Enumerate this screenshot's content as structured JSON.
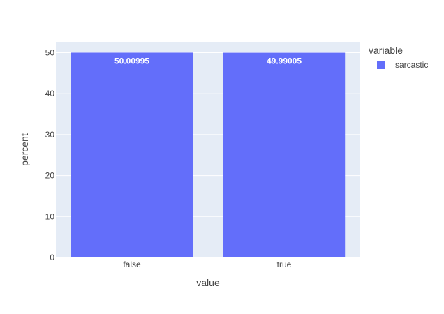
{
  "chart_data": {
    "type": "bar",
    "categories": [
      "false",
      "true"
    ],
    "series": [
      {
        "name": "sarcastic",
        "values": [
          50.00995,
          49.99005
        ],
        "color": "#636efa"
      }
    ],
    "data_labels": [
      "50.00995",
      "49.99005"
    ],
    "xlabel": "value",
    "ylabel": "percent",
    "ylim": [
      0,
      52.64
    ],
    "yticks": [
      0,
      10,
      20,
      30,
      40,
      50
    ],
    "grid": true,
    "legend": {
      "title": "variable",
      "position": "top-right"
    },
    "colors": {
      "plot_background": "#e5ecf6",
      "grid": "#ffffff",
      "bar": "#636efa"
    }
  }
}
